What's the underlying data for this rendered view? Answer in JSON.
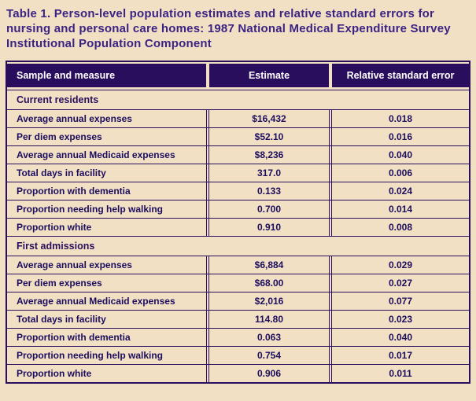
{
  "title": "Table 1.  Person-level population estimates and relative standard errors for nursing and personal care homes: 1987 National Medical Expenditure Survey Institutional Population Component",
  "table": {
    "headers": {
      "measure": "Sample and measure",
      "estimate": "Estimate",
      "rse": "Relative standard error"
    },
    "sections": [
      {
        "label": "Current residents",
        "rows": [
          {
            "measure": "Average annual expenses",
            "estimate": "$16,432",
            "rse": "0.018"
          },
          {
            "measure": "Per diem expenses",
            "estimate": "$52.10",
            "rse": "0.016"
          },
          {
            "measure": "Average annual Medicaid expenses",
            "estimate": "$8,236",
            "rse": "0.040"
          },
          {
            "measure": "Total days in facility",
            "estimate": "317.0",
            "rse": "0.006"
          },
          {
            "measure": "Proportion with dementia",
            "estimate": "0.133",
            "rse": "0.024"
          },
          {
            "measure": "Proportion needing help walking",
            "estimate": "0.700",
            "rse": "0.014"
          },
          {
            "measure": "Proportion white",
            "estimate": "0.910",
            "rse": "0.008"
          }
        ]
      },
      {
        "label": "First admissions",
        "rows": [
          {
            "measure": "Average annual expenses",
            "estimate": "$6,884",
            "rse": "0.029"
          },
          {
            "measure": "Per diem expenses",
            "estimate": "$68.00",
            "rse": "0.027"
          },
          {
            "measure": "Average annual Medicaid expenses",
            "estimate": "$2,016",
            "rse": "0.077"
          },
          {
            "measure": "Total days in facility",
            "estimate": "114.80",
            "rse": "0.023"
          },
          {
            "measure": "Proportion with dementia",
            "estimate": "0.063",
            "rse": "0.040"
          },
          {
            "measure": "Proportion needing help walking",
            "estimate": "0.754",
            "rse": "0.017"
          },
          {
            "measure": "Proportion white",
            "estimate": "0.906",
            "rse": "0.011"
          }
        ]
      }
    ]
  },
  "colors": {
    "page_background": "#f2e0c5",
    "header_background": "#2a0e5e",
    "header_text": "#ffffff",
    "title_text": "#3b2383",
    "body_text": "#1c0d5e",
    "line": "#2a0e5e"
  }
}
